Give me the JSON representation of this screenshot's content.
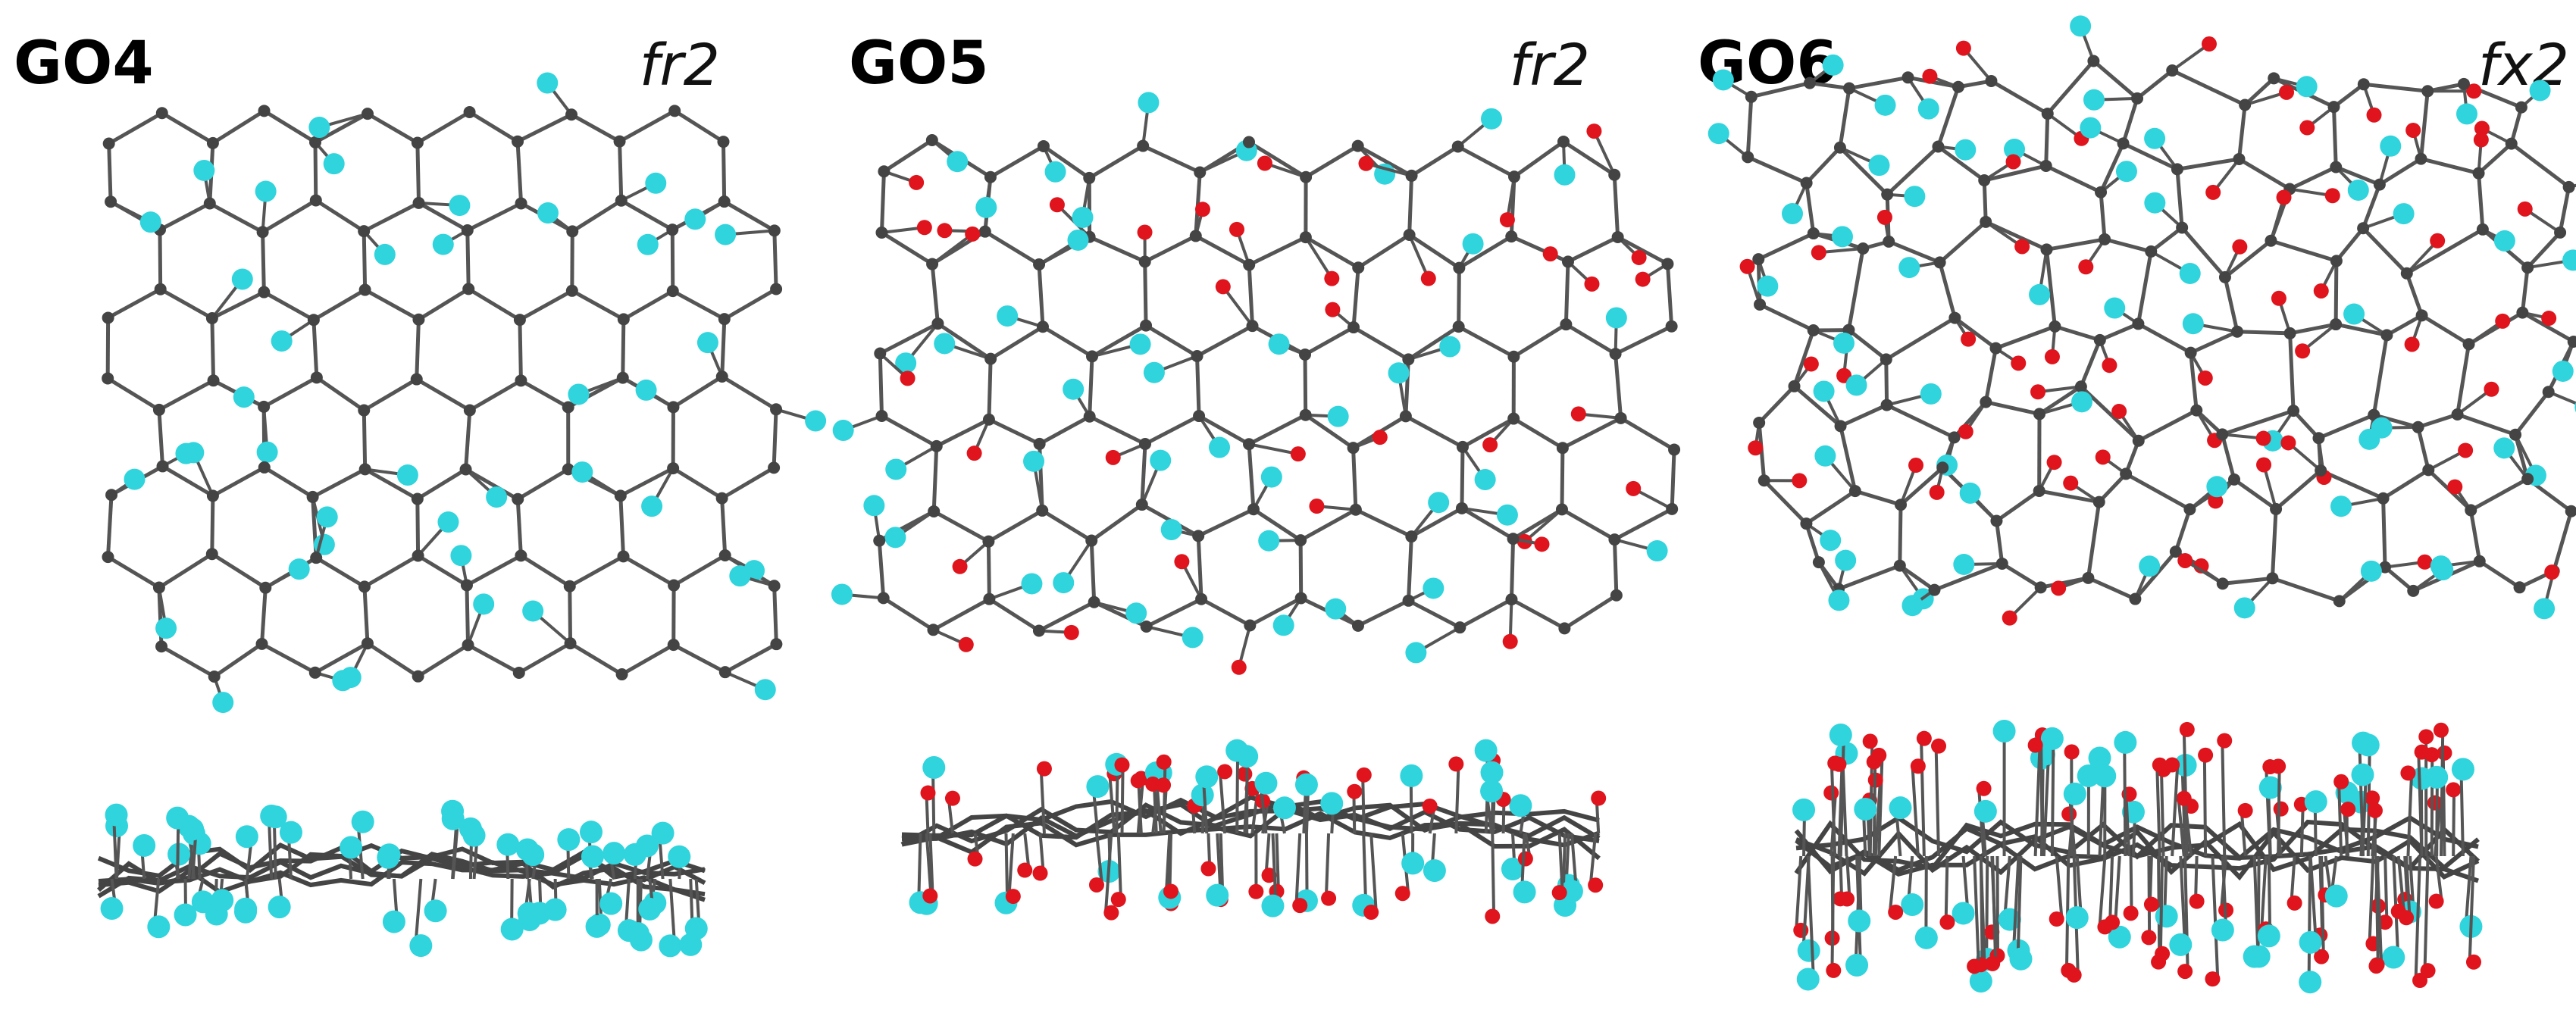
{
  "panels": [
    {
      "label": "GO4",
      "tag": "fr2"
    },
    {
      "label": "GO5",
      "tag": "fr2"
    },
    {
      "label": "GO6",
      "tag": "fx2"
    }
  ]
}
